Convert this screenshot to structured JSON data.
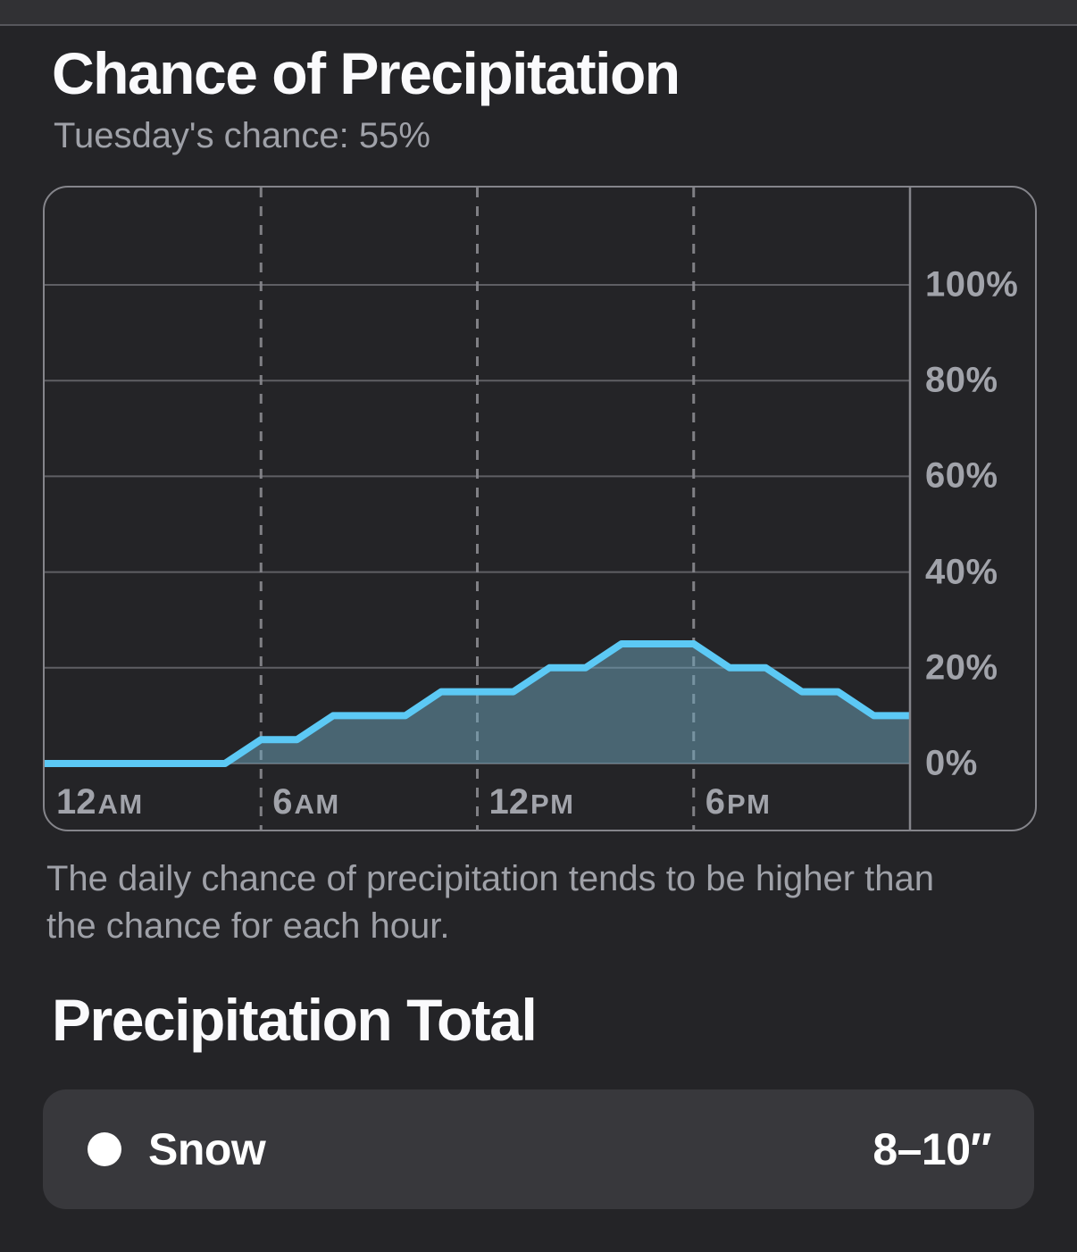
{
  "header": {
    "title": "Chance of Precipitation",
    "subtitle": "Tuesday's chance: 55%"
  },
  "chart_data": {
    "type": "area",
    "title": "Chance of Precipitation",
    "unit": "%",
    "x_hours": [
      0,
      1,
      2,
      3,
      4,
      5,
      6,
      7,
      8,
      9,
      10,
      11,
      12,
      13,
      14,
      15,
      16,
      17,
      18,
      19,
      20,
      21,
      22,
      23,
      24
    ],
    "series": [
      {
        "name": "hourly-chance",
        "values": [
          0,
          0,
          0,
          0,
          0,
          0,
          5,
          5,
          10,
          10,
          10,
          15,
          15,
          15,
          20,
          20,
          25,
          25,
          25,
          20,
          20,
          15,
          15,
          10,
          10
        ]
      }
    ],
    "x_ticks": [
      {
        "hour": 0,
        "num": "12",
        "suffix": "AM",
        "dashed": false
      },
      {
        "hour": 6,
        "num": "6",
        "suffix": "AM",
        "dashed": true
      },
      {
        "hour": 12,
        "num": "12",
        "suffix": "PM",
        "dashed": true
      },
      {
        "hour": 18,
        "num": "6",
        "suffix": "PM",
        "dashed": true
      }
    ],
    "y_ticks": [
      {
        "value": 100,
        "label": "100%"
      },
      {
        "value": 80,
        "label": "80%"
      },
      {
        "value": 60,
        "label": "60%"
      },
      {
        "value": 40,
        "label": "40%"
      },
      {
        "value": 20,
        "label": "20%"
      },
      {
        "value": 0,
        "label": "0%"
      }
    ],
    "ylim": [
      0,
      120
    ],
    "xlim_hours": [
      0,
      24
    ],
    "grid": {
      "horizontal": "solid",
      "vertical": "dashed"
    },
    "legend": "none",
    "line_color": "#5CC9F5",
    "fill_color": "rgba(110,165,190,0.5)",
    "gridline_color": "#5F5F64",
    "dash_color": "#8A8A90",
    "axis_text_color": "#A1A3AA"
  },
  "footnote": {
    "lines": [
      "The daily chance of precipitation tends to be higher than",
      "the chance for each hour."
    ]
  },
  "total_section": {
    "title": "Precipitation Total",
    "row": {
      "label": "Snow",
      "value": "8–10″",
      "bullet_color": "#FFFFFF"
    }
  }
}
